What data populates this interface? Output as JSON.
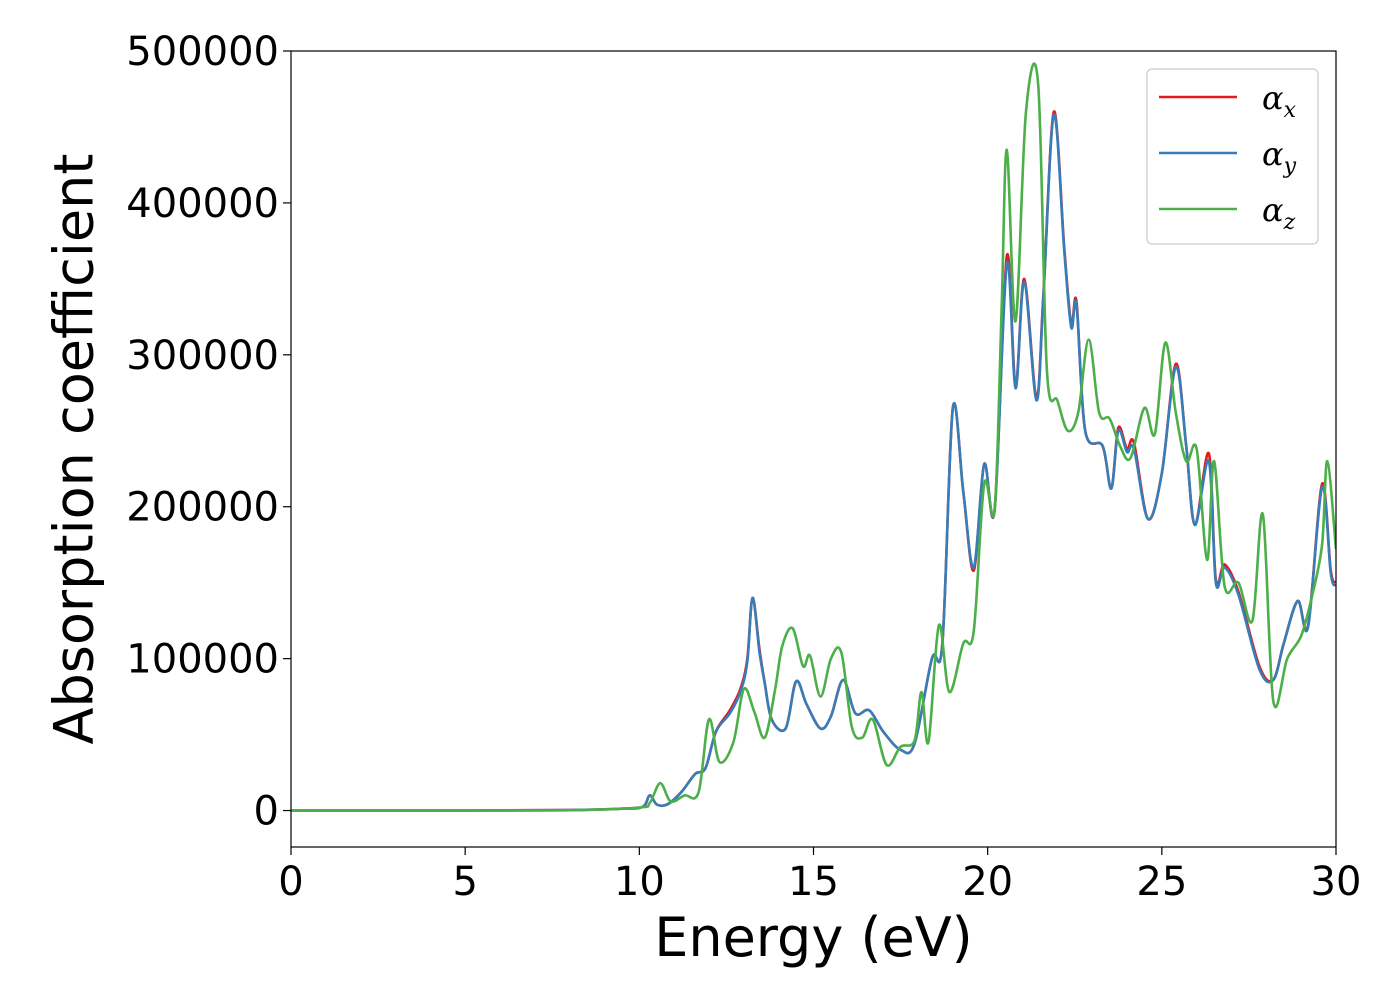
{
  "chart_data": {
    "type": "line",
    "title": "",
    "xlabel": "Energy (eV)",
    "ylabel": "Absorption coefficient",
    "xlim": [
      0,
      30
    ],
    "ylim": [
      -24000,
      500000
    ],
    "xticks": [
      0,
      5,
      10,
      15,
      20,
      25,
      30
    ],
    "yticks": [
      0,
      100000,
      200000,
      300000,
      400000,
      500000
    ],
    "xtick_labels": [
      "0",
      "5",
      "10",
      "15",
      "20",
      "25",
      "30"
    ],
    "ytick_labels": [
      "0",
      "100000",
      "200000",
      "300000",
      "400000",
      "500000"
    ],
    "grid": false,
    "legend_position": "top-right",
    "legend": [
      {
        "symbol": "α",
        "subscript": "x",
        "color": "#e41a1c"
      },
      {
        "symbol": "α",
        "subscript": "y",
        "color": "#377eb8"
      },
      {
        "symbol": "α",
        "subscript": "z",
        "color": "#4daf4a"
      }
    ],
    "series": [
      {
        "name": "αx",
        "color": "#e41a1c",
        "points": [
          [
            0,
            0
          ],
          [
            5,
            0
          ],
          [
            8,
            300
          ],
          [
            9.5,
            1200
          ],
          [
            10.1,
            2500
          ],
          [
            10.3,
            10000
          ],
          [
            10.5,
            4000
          ],
          [
            10.8,
            4000
          ],
          [
            11.2,
            12000
          ],
          [
            11.6,
            24000
          ],
          [
            11.9,
            28000
          ],
          [
            12.2,
            52000
          ],
          [
            12.6,
            66000
          ],
          [
            12.9,
            80000
          ],
          [
            13.1,
            100000
          ],
          [
            13.25,
            140000
          ],
          [
            13.45,
            106000
          ],
          [
            13.6,
            84000
          ],
          [
            13.8,
            60000
          ],
          [
            14.2,
            54000
          ],
          [
            14.5,
            85000
          ],
          [
            14.8,
            70000
          ],
          [
            15.2,
            54000
          ],
          [
            15.5,
            62000
          ],
          [
            15.85,
            86000
          ],
          [
            16.2,
            64000
          ],
          [
            16.6,
            66000
          ],
          [
            17.0,
            52000
          ],
          [
            17.5,
            40000
          ],
          [
            17.9,
            44000
          ],
          [
            18.4,
            100000
          ],
          [
            18.7,
            110000
          ],
          [
            19.0,
            265000
          ],
          [
            19.3,
            210000
          ],
          [
            19.6,
            158000
          ],
          [
            19.9,
            228000
          ],
          [
            20.2,
            198000
          ],
          [
            20.55,
            365000
          ],
          [
            20.8,
            280000
          ],
          [
            21.05,
            350000
          ],
          [
            21.4,
            272000
          ],
          [
            21.6,
            340000
          ],
          [
            21.9,
            460000
          ],
          [
            22.2,
            370000
          ],
          [
            22.4,
            320000
          ],
          [
            22.55,
            335000
          ],
          [
            22.8,
            250000
          ],
          [
            23.3,
            240000
          ],
          [
            23.55,
            212000
          ],
          [
            23.75,
            252000
          ],
          [
            24.0,
            238000
          ],
          [
            24.2,
            242000
          ],
          [
            24.6,
            192000
          ],
          [
            25.0,
            222000
          ],
          [
            25.4,
            294000
          ],
          [
            25.7,
            240000
          ],
          [
            25.95,
            188000
          ],
          [
            26.35,
            235000
          ],
          [
            26.55,
            152000
          ],
          [
            26.8,
            162000
          ],
          [
            27.2,
            144000
          ],
          [
            27.8,
            95000
          ],
          [
            28.2,
            86000
          ],
          [
            28.5,
            110000
          ],
          [
            28.9,
            138000
          ],
          [
            29.2,
            122000
          ],
          [
            29.6,
            215000
          ],
          [
            29.85,
            158000
          ],
          [
            30,
            150000
          ]
        ]
      },
      {
        "name": "αy",
        "color": "#377eb8",
        "points": [
          [
            0,
            0
          ],
          [
            5,
            0
          ],
          [
            8,
            300
          ],
          [
            9.5,
            1200
          ],
          [
            10.1,
            2500
          ],
          [
            10.3,
            10000
          ],
          [
            10.5,
            4000
          ],
          [
            10.8,
            4000
          ],
          [
            11.2,
            12000
          ],
          [
            11.6,
            24000
          ],
          [
            11.9,
            28000
          ],
          [
            12.2,
            52000
          ],
          [
            12.6,
            64000
          ],
          [
            12.9,
            78000
          ],
          [
            13.1,
            98000
          ],
          [
            13.25,
            140000
          ],
          [
            13.45,
            104000
          ],
          [
            13.6,
            84000
          ],
          [
            13.8,
            60000
          ],
          [
            14.2,
            54000
          ],
          [
            14.5,
            85000
          ],
          [
            14.8,
            70000
          ],
          [
            15.2,
            54000
          ],
          [
            15.5,
            62000
          ],
          [
            15.85,
            86000
          ],
          [
            16.2,
            64000
          ],
          [
            16.6,
            66000
          ],
          [
            17.0,
            52000
          ],
          [
            17.5,
            40000
          ],
          [
            17.9,
            44000
          ],
          [
            18.4,
            100000
          ],
          [
            18.7,
            110000
          ],
          [
            19.0,
            265000
          ],
          [
            19.3,
            210000
          ],
          [
            19.6,
            160000
          ],
          [
            19.9,
            228000
          ],
          [
            20.2,
            198000
          ],
          [
            20.55,
            360000
          ],
          [
            20.8,
            278000
          ],
          [
            21.05,
            348000
          ],
          [
            21.4,
            270000
          ],
          [
            21.6,
            338000
          ],
          [
            21.9,
            458000
          ],
          [
            22.2,
            368000
          ],
          [
            22.4,
            318000
          ],
          [
            22.55,
            333000
          ],
          [
            22.8,
            250000
          ],
          [
            23.3,
            240000
          ],
          [
            23.55,
            212000
          ],
          [
            23.75,
            250000
          ],
          [
            24.0,
            236000
          ],
          [
            24.2,
            238000
          ],
          [
            24.6,
            192000
          ],
          [
            25.0,
            222000
          ],
          [
            25.4,
            292000
          ],
          [
            25.7,
            240000
          ],
          [
            25.95,
            188000
          ],
          [
            26.35,
            230000
          ],
          [
            26.55,
            150000
          ],
          [
            26.8,
            160000
          ],
          [
            27.2,
            142000
          ],
          [
            27.8,
            93000
          ],
          [
            28.2,
            86000
          ],
          [
            28.5,
            110000
          ],
          [
            28.9,
            138000
          ],
          [
            29.2,
            121000
          ],
          [
            29.6,
            213000
          ],
          [
            29.85,
            156000
          ],
          [
            30,
            148000
          ]
        ]
      },
      {
        "name": "αz",
        "color": "#4daf4a",
        "points": [
          [
            0,
            0
          ],
          [
            5,
            0
          ],
          [
            8,
            200
          ],
          [
            10.0,
            2000
          ],
          [
            10.3,
            5000
          ],
          [
            10.6,
            18000
          ],
          [
            10.9,
            6000
          ],
          [
            11.3,
            10000
          ],
          [
            11.7,
            12000
          ],
          [
            12.0,
            60000
          ],
          [
            12.3,
            32000
          ],
          [
            12.7,
            45000
          ],
          [
            13.0,
            80000
          ],
          [
            13.3,
            65000
          ],
          [
            13.6,
            48000
          ],
          [
            13.9,
            80000
          ],
          [
            14.1,
            108000
          ],
          [
            14.4,
            120000
          ],
          [
            14.7,
            95000
          ],
          [
            14.9,
            102000
          ],
          [
            15.2,
            75000
          ],
          [
            15.5,
            100000
          ],
          [
            15.8,
            104000
          ],
          [
            16.1,
            55000
          ],
          [
            16.4,
            48000
          ],
          [
            16.7,
            60000
          ],
          [
            17.1,
            30000
          ],
          [
            17.5,
            42000
          ],
          [
            17.9,
            46000
          ],
          [
            18.1,
            78000
          ],
          [
            18.3,
            45000
          ],
          [
            18.6,
            122000
          ],
          [
            18.9,
            78000
          ],
          [
            19.3,
            110000
          ],
          [
            19.6,
            118000
          ],
          [
            19.9,
            215000
          ],
          [
            20.2,
            198000
          ],
          [
            20.4,
            330000
          ],
          [
            20.55,
            435000
          ],
          [
            20.8,
            322000
          ],
          [
            21.1,
            460000
          ],
          [
            21.45,
            478000
          ],
          [
            21.7,
            290000
          ],
          [
            22.0,
            270000
          ],
          [
            22.3,
            250000
          ],
          [
            22.6,
            262000
          ],
          [
            22.9,
            310000
          ],
          [
            23.2,
            262000
          ],
          [
            23.5,
            258000
          ],
          [
            23.8,
            240000
          ],
          [
            24.1,
            232000
          ],
          [
            24.5,
            265000
          ],
          [
            24.8,
            248000
          ],
          [
            25.1,
            308000
          ],
          [
            25.4,
            262000
          ],
          [
            25.7,
            230000
          ],
          [
            26.0,
            238000
          ],
          [
            26.3,
            165000
          ],
          [
            26.5,
            230000
          ],
          [
            26.8,
            148000
          ],
          [
            27.2,
            150000
          ],
          [
            27.6,
            125000
          ],
          [
            27.9,
            195000
          ],
          [
            28.2,
            72000
          ],
          [
            28.6,
            100000
          ],
          [
            29.0,
            115000
          ],
          [
            29.3,
            140000
          ],
          [
            29.6,
            175000
          ],
          [
            29.75,
            230000
          ],
          [
            30,
            172000
          ]
        ]
      }
    ]
  }
}
